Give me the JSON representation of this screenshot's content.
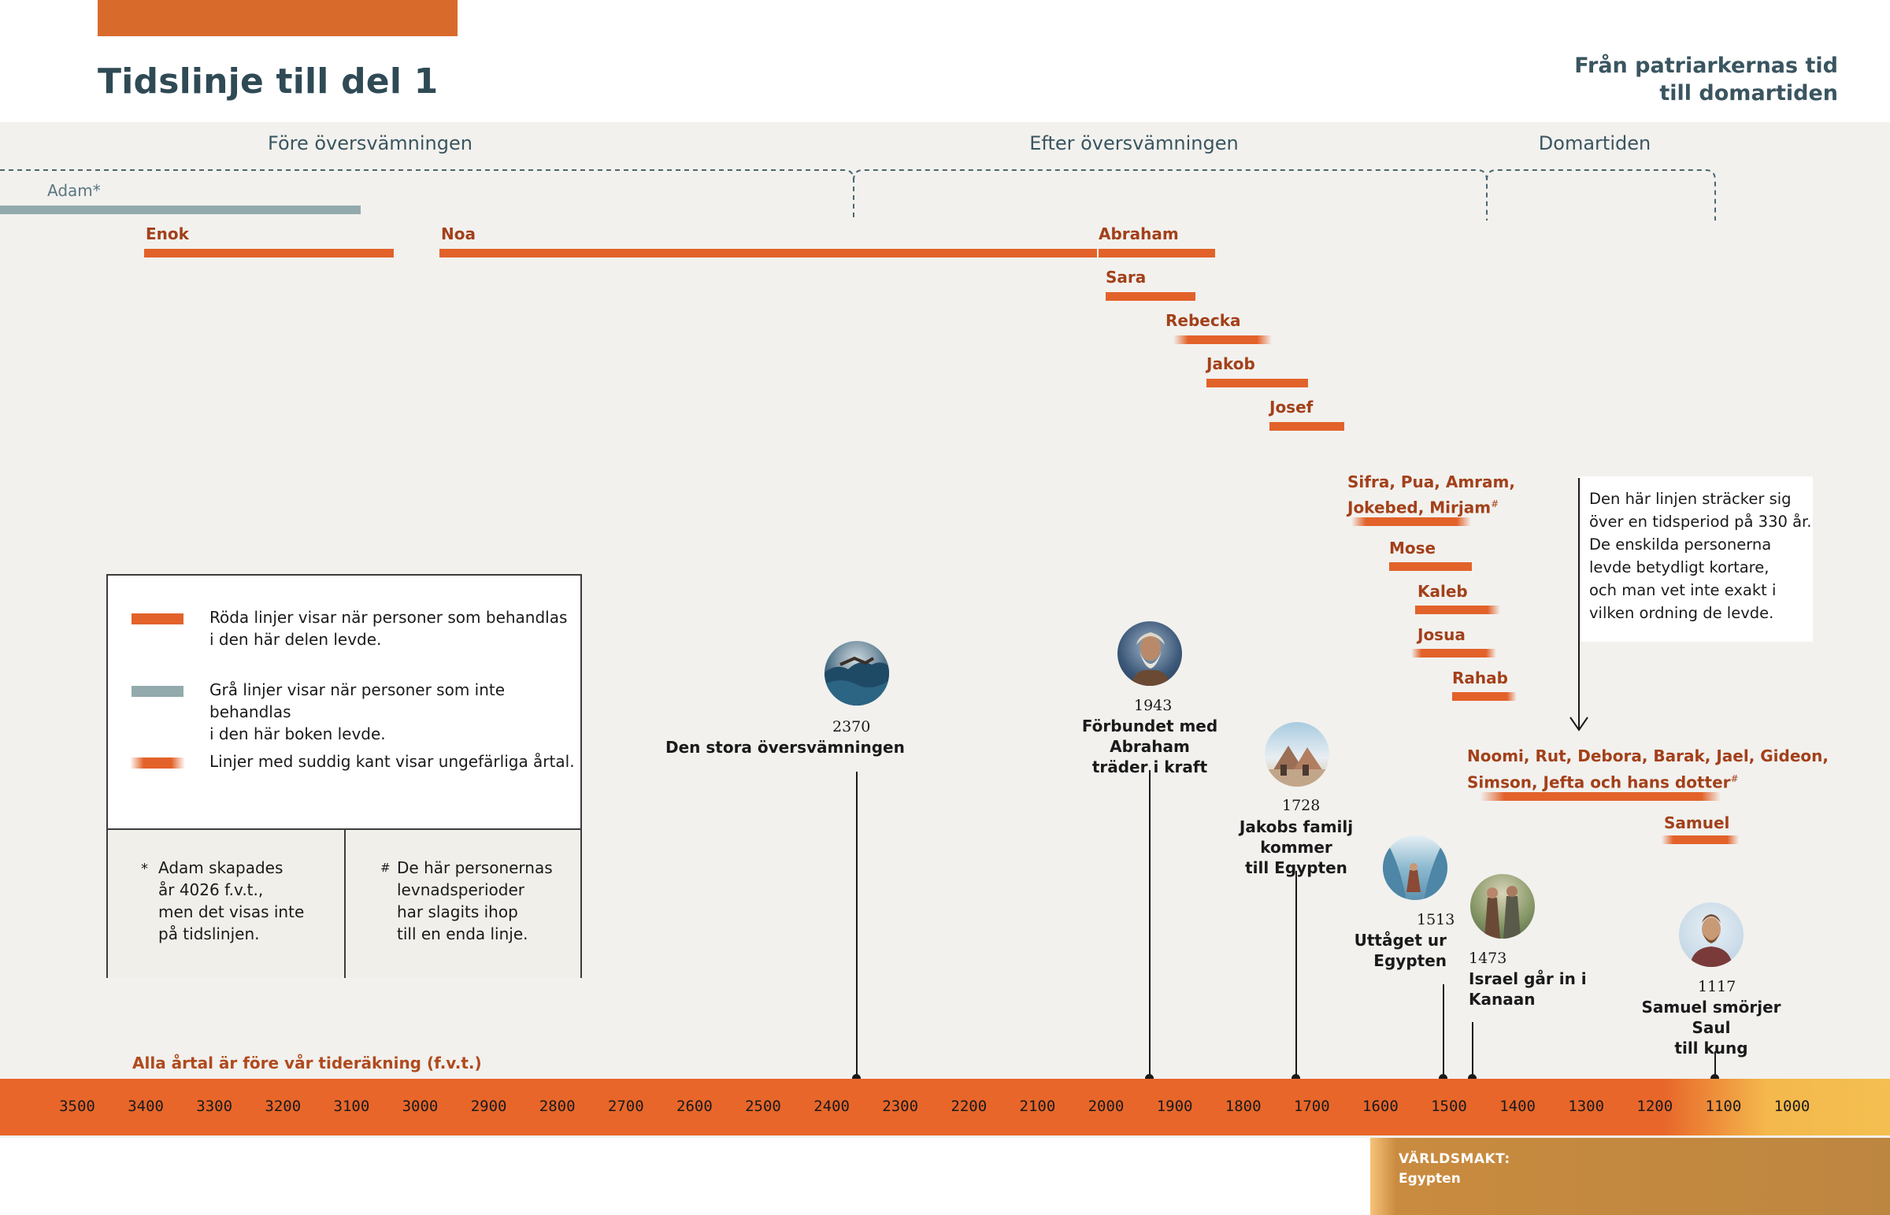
{
  "header": {
    "title": "Tidslinje till del 1",
    "subtitle_line1": "Från patriarkernas tid",
    "subtitle_line2": "till domartiden"
  },
  "eras": [
    {
      "label": "Före översvämningen"
    },
    {
      "label": "Efter översvämningen"
    },
    {
      "label": "Domartiden"
    }
  ],
  "people": [
    {
      "name": "Adam*",
      "kind": "gray"
    },
    {
      "name": "Enok",
      "kind": "red"
    },
    {
      "name": "Noa",
      "kind": "red"
    },
    {
      "name": "Abraham",
      "kind": "red"
    },
    {
      "name": "Sara",
      "kind": "red"
    },
    {
      "name": "Rebecka",
      "kind": "fuzzy"
    },
    {
      "name": "Jakob",
      "kind": "red"
    },
    {
      "name": "Josef",
      "kind": "red"
    },
    {
      "name": "Sifra, Pua, Amram,",
      "name2": "Jokebed, Mirjam",
      "mark": "#",
      "kind": "fuzzy"
    },
    {
      "name": "Mose",
      "kind": "red"
    },
    {
      "name": "Kaleb",
      "kind": "fuzzy"
    },
    {
      "name": "Josua",
      "kind": "fuzzy"
    },
    {
      "name": "Rahab",
      "kind": "fuzzy"
    },
    {
      "name": "Noomi, Rut, Debora, Barak, Jael, Gideon,",
      "name2": "Simson, Jefta och hans dotter",
      "mark": "#",
      "kind": "fuzzy"
    },
    {
      "name": "Samuel",
      "kind": "fuzzy"
    }
  ],
  "events": [
    {
      "year": "2370",
      "title1": "Den stora översvämningen",
      "title2": "",
      "icon": "flood-icon"
    },
    {
      "year": "1943",
      "title1": "Förbundet med Abraham",
      "title2": "träder i kraft",
      "icon": "abraham-portrait-icon"
    },
    {
      "year": "1728",
      "title1": "Jakobs familj kommer",
      "title2": "till Egypten",
      "icon": "egypt-pyramids-icon"
    },
    {
      "year": "1513",
      "title1": "Uttåget ur",
      "title2": "Egypten",
      "icon": "red-sea-icon"
    },
    {
      "year": "1473",
      "title1": "Israel går in i",
      "title2": "Kanaan",
      "icon": "canaan-spies-icon"
    },
    {
      "year": "1117",
      "title1": "Samuel smörjer Saul",
      "title2": "till kung",
      "icon": "saul-king-icon"
    }
  ],
  "note": {
    "lines": [
      "Den här linjen sträcker sig",
      "över en tidsperiod på 330 år.",
      "De enskilda personerna",
      "levde betydligt kortare,",
      "och man vet inte exakt i",
      "vilken ordning de levde."
    ]
  },
  "legend": {
    "red_line1": "Röda linjer visar när personer som behandlas",
    "red_line2": "i den här delen levde.",
    "gray_line1": "Grå linjer visar när personer som inte behandlas",
    "gray_line2": "i den här boken levde.",
    "fuzzy_line": "Linjer med suddig kant visar ungefärliga årtal.",
    "footnote_star_mark": "*",
    "footnote_star": [
      "Adam skapades",
      "år 4026 f.v.t.,",
      "men det visas inte",
      "på tidslinjen."
    ],
    "footnote_hash_mark": "#",
    "footnote_hash": [
      "De här personernas",
      "levnadsperioder",
      "har slagits ihop",
      "till en enda linje."
    ]
  },
  "axis": {
    "note": "Alla årtal är före vår tideräkning (f.v.t.)",
    "ticks": [
      "3500",
      "3400",
      "3300",
      "3200",
      "3100",
      "3000",
      "2900",
      "2800",
      "2700",
      "2600",
      "2500",
      "2400",
      "2300",
      "2200",
      "2100",
      "2000",
      "1900",
      "1800",
      "1700",
      "1600",
      "1500",
      "1400",
      "1300",
      "1200",
      "1100",
      "1000"
    ]
  },
  "world_power": {
    "label": "VÄRLDSMAKT:",
    "value": "Egypten"
  },
  "colors": {
    "red": "#e2622a",
    "gray": "#93aaad",
    "title": "#2f4a55",
    "person_name": "#a3401a",
    "axis_band": "#e8662a"
  }
}
